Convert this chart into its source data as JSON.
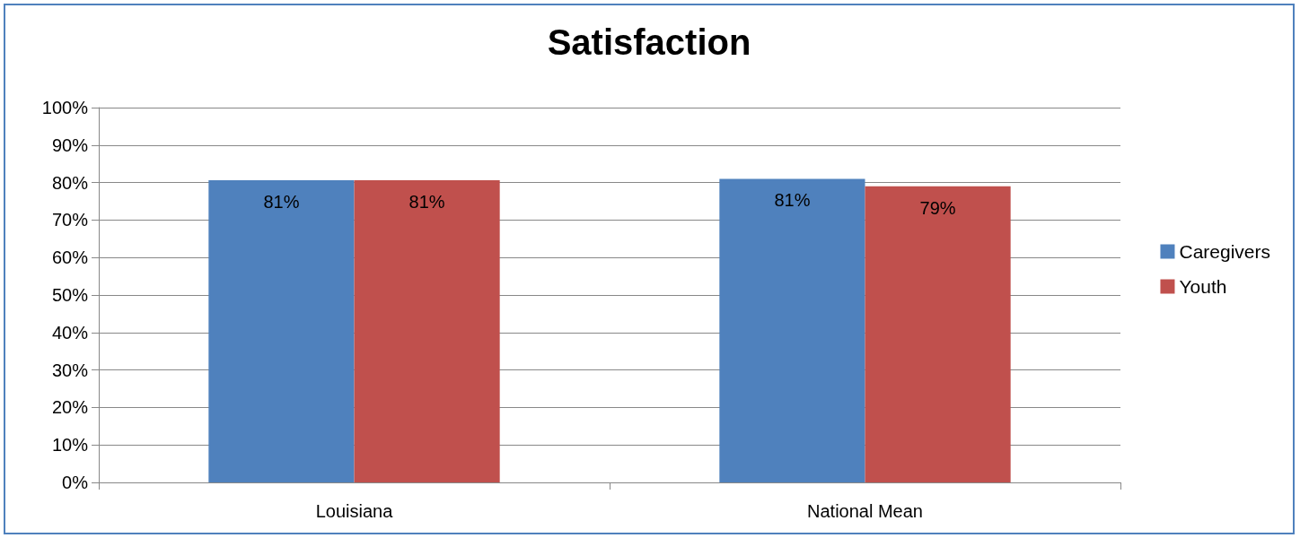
{
  "chart_data": {
    "type": "bar",
    "title": "Satisfaction",
    "categories": [
      "Louisiana",
      "National Mean"
    ],
    "series": [
      {
        "name": "Caregivers",
        "color": "#4f81bd",
        "values": [
          80.6,
          81
        ],
        "value_labels": [
          "81%",
          "81%"
        ]
      },
      {
        "name": "Youth",
        "color": "#c0504d",
        "values": [
          80.6,
          79
        ],
        "value_labels": [
          "81%",
          "79%"
        ]
      }
    ],
    "ylim": [
      0,
      100
    ],
    "yticks": [
      {
        "value": 0,
        "label": "0%"
      },
      {
        "value": 10,
        "label": "10%"
      },
      {
        "value": 20,
        "label": "20%"
      },
      {
        "value": 30,
        "label": "30%"
      },
      {
        "value": 40,
        "label": "40%"
      },
      {
        "value": 50,
        "label": "50%"
      },
      {
        "value": 60,
        "label": "60%"
      },
      {
        "value": 70,
        "label": "70%"
      },
      {
        "value": 80,
        "label": "80%"
      },
      {
        "value": 90,
        "label": "90%"
      },
      {
        "value": 100,
        "label": "100%"
      }
    ],
    "grid": "y",
    "legend": "right"
  }
}
